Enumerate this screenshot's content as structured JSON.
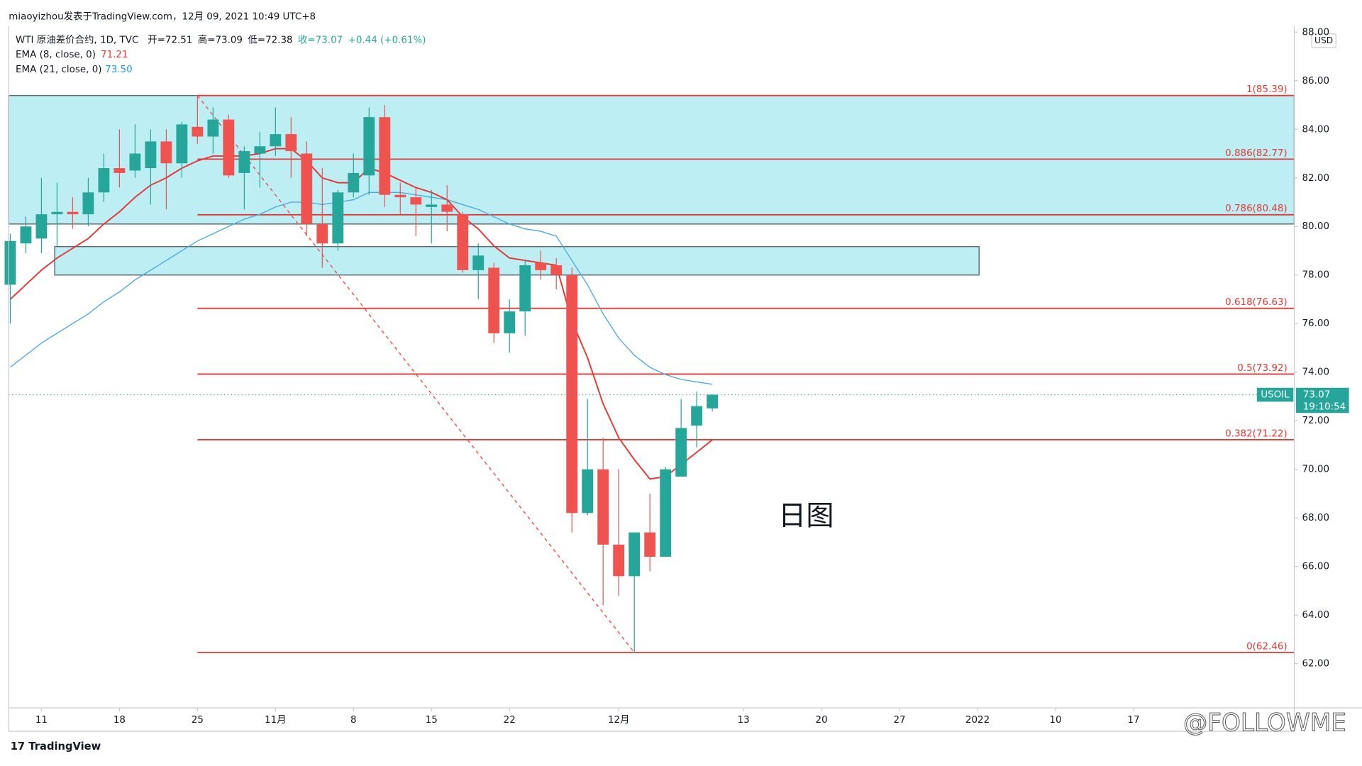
{
  "chart_data": {
    "type": "candlestick",
    "header": "miaoyizhou发表于TradingView.com，12月 09, 2021 10:49 UTC+8",
    "legend_symbol": "WTI 原油差价合约, 1D, TVC",
    "legend_items": [
      "开=72.51",
      "高=73.09",
      "低=72.38",
      "收=73.07",
      "+0.44 (+0.61%)"
    ],
    "annotation": "日图",
    "currency": "USD",
    "symbol": "USOIL",
    "countdown": "19:10:54",
    "brand": "TradingView",
    "watermark": "@FOLLOWME",
    "up_color": "#26a69a",
    "down_color": "#ef5350",
    "open": [
      77.6,
      79.3,
      79.5,
      80.5,
      80.6,
      80.5,
      81.4,
      82.4,
      82.3,
      82.4,
      83.5,
      82.6,
      84.1,
      83.7,
      84.4,
      82.2,
      83.0,
      83.3,
      83.8,
      83.0,
      80.1,
      79.3,
      81.4,
      82.1,
      84.5,
      81.3,
      81.2,
      80.8,
      80.9,
      80.5,
      78.2,
      78.3,
      75.6,
      76.5,
      78.5,
      78.4,
      78.0,
      68.2,
      70.0,
      66.9,
      65.6,
      67.4,
      66.4,
      69.7,
      71.8,
      72.51
    ],
    "high": [
      79.7,
      80.4,
      82.0,
      81.8,
      81.2,
      82.0,
      83.0,
      84.0,
      84.2,
      84.0,
      84.0,
      84.3,
      85.4,
      84.9,
      84.6,
      83.3,
      83.9,
      84.9,
      84.5,
      83.5,
      82.4,
      81.5,
      83.0,
      84.9,
      85.0,
      81.8,
      81.6,
      81.5,
      81.7,
      80.6,
      79.3,
      78.5,
      77.0,
      78.6,
      79.0,
      78.7,
      78.3,
      72.9,
      71.3,
      70.0,
      67.4,
      69.0,
      70.1,
      72.9,
      73.2,
      73.09
    ],
    "low": [
      76.0,
      78.9,
      78.9,
      79.2,
      79.9,
      80.0,
      81.0,
      81.6,
      82.0,
      80.9,
      80.7,
      82.0,
      83.4,
      83.0,
      82.0,
      80.7,
      81.6,
      82.9,
      82.0,
      79.6,
      78.3,
      79.0,
      81.2,
      81.3,
      80.8,
      80.5,
      79.6,
      79.3,
      79.8,
      78.1,
      77.0,
      75.2,
      74.8,
      75.5,
      77.8,
      77.4,
      67.4,
      68.1,
      64.4,
      64.8,
      62.46,
      65.8,
      66.4,
      69.7,
      70.9,
      72.38
    ],
    "close": [
      79.4,
      80.0,
      80.5,
      80.6,
      80.5,
      81.4,
      82.4,
      82.2,
      83.0,
      83.5,
      82.6,
      84.2,
      83.7,
      84.4,
      82.1,
      83.1,
      83.3,
      83.8,
      83.1,
      80.1,
      79.3,
      81.4,
      82.2,
      84.5,
      81.3,
      81.2,
      80.9,
      80.9,
      80.6,
      78.2,
      78.8,
      75.6,
      76.5,
      78.4,
      78.2,
      78.0,
      68.2,
      70.0,
      66.9,
      65.6,
      67.4,
      66.4,
      70.0,
      71.7,
      72.6,
      73.07
    ],
    "series": [
      {
        "name": "EMA (21, close, 0)",
        "color": "#4aa8e0",
        "last_label": "73.50",
        "values": [
          74.2,
          74.7,
          75.2,
          75.6,
          76.0,
          76.4,
          76.9,
          77.3,
          77.8,
          78.2,
          78.6,
          79.0,
          79.4,
          79.7,
          80.0,
          80.3,
          80.5,
          80.8,
          81.0,
          81.0,
          80.9,
          81.0,
          81.1,
          81.4,
          81.4,
          81.4,
          81.3,
          81.2,
          81.1,
          80.9,
          80.7,
          80.4,
          80.1,
          79.9,
          79.8,
          79.6,
          78.6,
          77.6,
          76.4,
          75.4,
          74.7,
          74.2,
          73.9,
          73.7,
          73.6,
          73.5
        ]
      },
      {
        "name": "EMA (8, close, 0)",
        "color": "#e53935",
        "values": [
          77.0,
          77.6,
          78.2,
          78.7,
          79.1,
          79.5,
          80.1,
          80.6,
          81.2,
          81.7,
          82.0,
          82.4,
          82.7,
          82.9,
          82.9,
          82.9,
          83.0,
          83.2,
          83.2,
          82.7,
          82.0,
          81.8,
          81.8,
          82.4,
          82.2,
          81.9,
          81.6,
          81.4,
          81.1,
          80.4,
          79.9,
          79.2,
          78.7,
          78.6,
          78.5,
          78.4,
          76.1,
          74.6,
          72.7,
          71.3,
          70.4,
          69.6,
          69.7,
          70.2,
          70.7,
          71.21
        ]
      }
    ],
    "fib_start": 12,
    "fib_levels": [
      {
        "value": 85.39,
        "label": "1(85.39)"
      },
      {
        "value": 82.77,
        "label": "0.886(82.77)"
      },
      {
        "value": 80.48,
        "label": "0.786(80.48)"
      },
      {
        "value": 76.63,
        "label": "0.618(76.63)"
      },
      {
        "value": 73.92,
        "label": "0.5(73.92)"
      },
      {
        "value": 71.22,
        "label": "0.382(71.22)"
      },
      {
        "value": 62.46,
        "label": "0(62.46)"
      }
    ],
    "trend_line": {
      "x": [
        12,
        40
      ],
      "y": [
        85.39,
        62.46
      ]
    },
    "zones": [
      {
        "x0": -0.1,
        "x1": 82.3,
        "top": 85.39,
        "bottom": 80.1
      },
      {
        "x0": 2.85,
        "x1": 62.1,
        "top": 79.17,
        "bottom": 78.0
      }
    ],
    "xlim": [
      -0.1,
      82.3
    ],
    "ylim": [
      60.18,
      88.25
    ],
    "xticks": [
      {
        "value": 2,
        "label": "11"
      },
      {
        "value": 7,
        "label": "18"
      },
      {
        "value": 12,
        "label": "25"
      },
      {
        "value": 17,
        "label": "11月"
      },
      {
        "value": 22,
        "label": "8"
      },
      {
        "value": 27,
        "label": "15"
      },
      {
        "value": 32,
        "label": "22"
      },
      {
        "value": 39,
        "label": "12月"
      },
      {
        "value": 47,
        "label": "13"
      },
      {
        "value": 52,
        "label": "20"
      },
      {
        "value": 57,
        "label": "27"
      },
      {
        "value": 62,
        "label": "2022"
      },
      {
        "value": 67,
        "label": "10"
      },
      {
        "value": 72,
        "label": "17"
      }
    ],
    "yticks": [
      {
        "value": 62,
        "label": "62.00"
      },
      {
        "value": 64,
        "label": "64.00"
      },
      {
        "value": 66,
        "label": "66.00"
      },
      {
        "value": 68,
        "label": "68.00"
      },
      {
        "value": 70,
        "label": "70.00"
      },
      {
        "value": 72,
        "label": "72.00"
      },
      {
        "value": 74,
        "label": "74.00"
      },
      {
        "value": 76,
        "label": "76.00"
      },
      {
        "value": 78,
        "label": "78.00"
      },
      {
        "value": 80,
        "label": "80.00"
      },
      {
        "value": 82,
        "label": "82.00"
      },
      {
        "value": 84,
        "label": "84.00"
      },
      {
        "value": 86,
        "label": "86.00"
      },
      {
        "value": 88,
        "label": "88.00"
      }
    ]
  }
}
